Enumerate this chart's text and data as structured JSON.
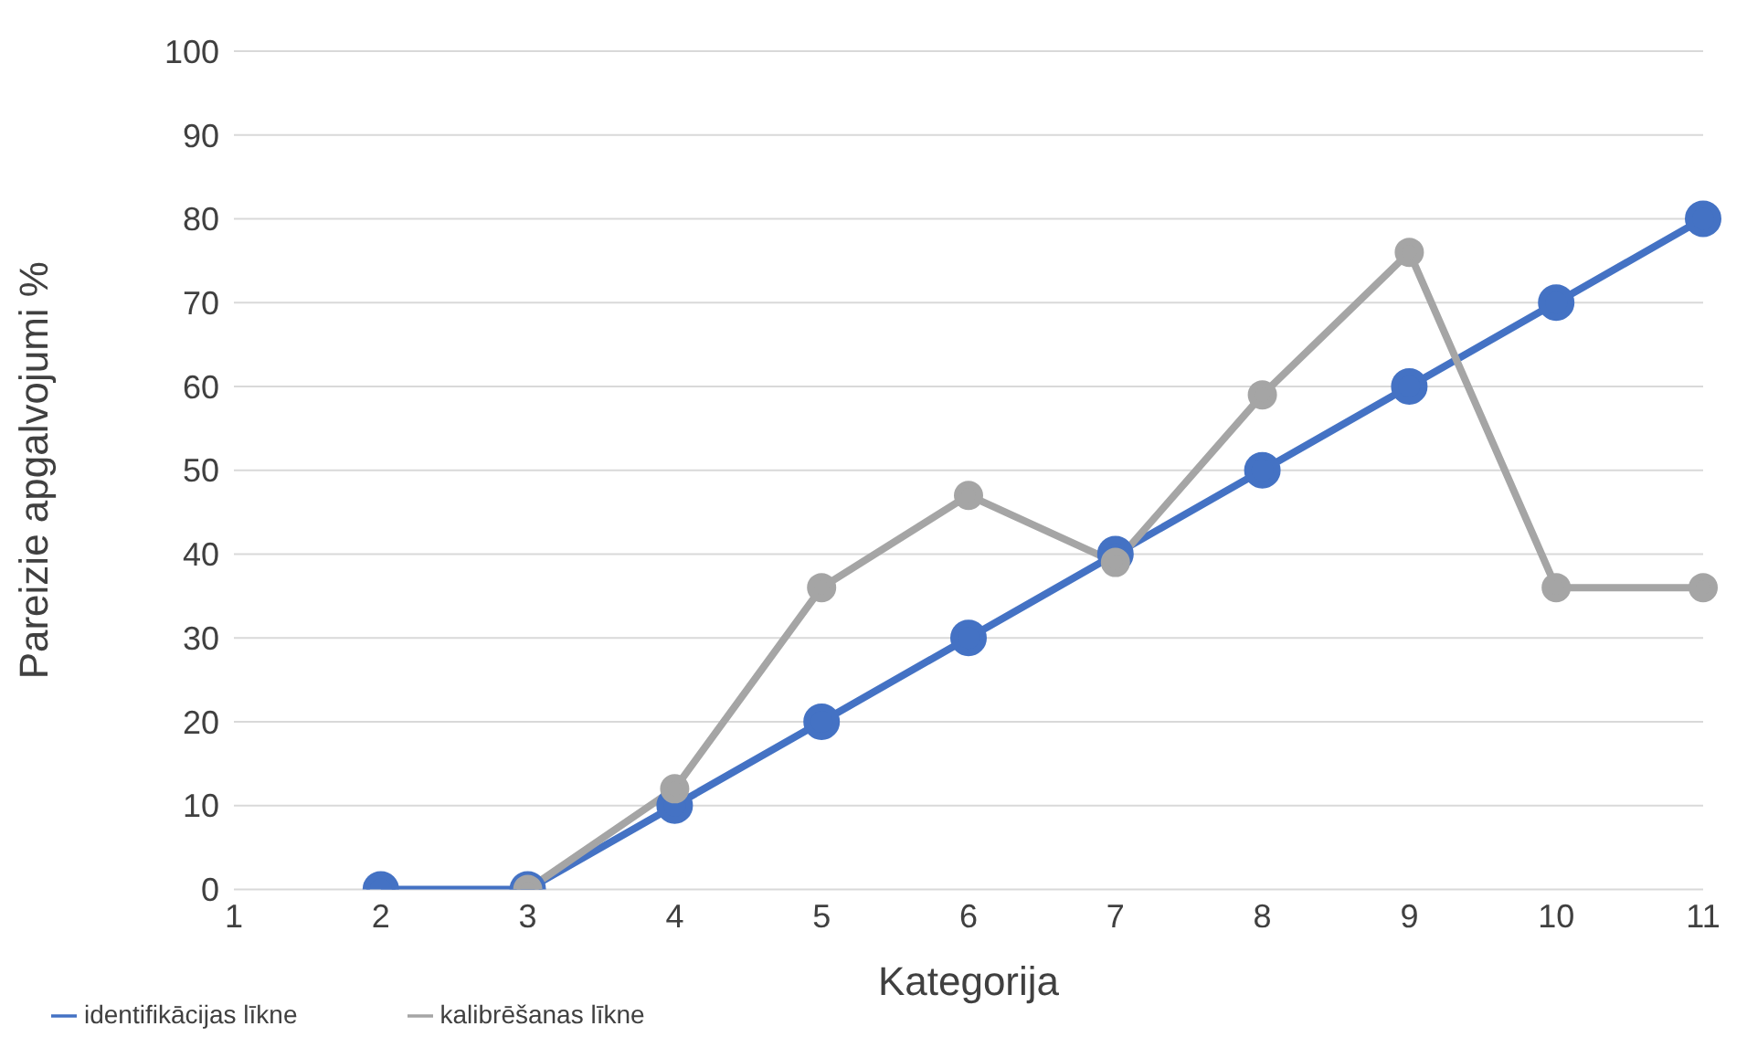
{
  "chart_data": {
    "type": "line",
    "xlabel": "Kategorija",
    "ylabel": "Pareizie apgalvojumi %",
    "categories": [
      "1",
      "2",
      "3",
      "4",
      "5",
      "6",
      "7",
      "8",
      "9",
      "10",
      "11"
    ],
    "series": [
      {
        "name": "identifikācijas līkne",
        "color": "#4472c4",
        "values": [
          null,
          0,
          0,
          10,
          20,
          30,
          40,
          50,
          60,
          70,
          80
        ]
      },
      {
        "name": "kalibrēšanas līkne",
        "color": "#a5a5a5",
        "values": [
          null,
          null,
          0,
          12,
          36,
          47,
          39,
          59,
          76,
          36,
          36
        ]
      }
    ],
    "ylim": [
      0,
      100
    ],
    "yticks": [
      0,
      10,
      20,
      30,
      40,
      50,
      60,
      70,
      80,
      90,
      100
    ],
    "grid": "y",
    "legend": "bottom left",
    "marker": "circle",
    "line_style": "solid"
  }
}
